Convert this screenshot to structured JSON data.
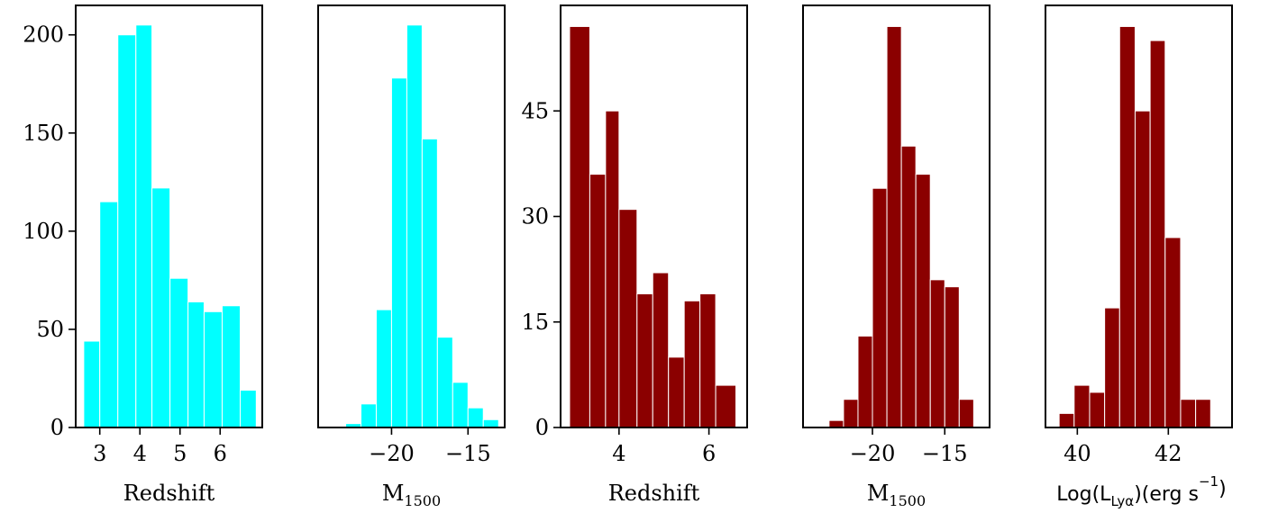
{
  "chart_data": [
    {
      "type": "bar",
      "xlabel": "Redshift",
      "bar_color": "#00ffff",
      "bins": [
        [
          2.6,
          3.0,
          44
        ],
        [
          3.0,
          3.45,
          115
        ],
        [
          3.45,
          3.9,
          200
        ],
        [
          3.9,
          4.3,
          205
        ],
        [
          4.3,
          4.75,
          122
        ],
        [
          4.75,
          5.2,
          76
        ],
        [
          5.2,
          5.6,
          64
        ],
        [
          5.6,
          6.05,
          59
        ],
        [
          6.05,
          6.5,
          62
        ],
        [
          6.5,
          6.9,
          19
        ]
      ],
      "xlim": [
        2.4,
        7.05
      ],
      "ylim": [
        0,
        215
      ],
      "xticks": [
        3,
        4,
        5,
        6
      ],
      "xtick_labels": [
        "3",
        "4",
        "5",
        "6"
      ],
      "yticks": [
        0,
        50,
        100,
        150,
        200
      ],
      "ytick_labels": [
        "0",
        "50",
        "100",
        "150",
        "200"
      ]
    },
    {
      "type": "bar",
      "xlabel_main": "M",
      "xlabel_sub": "1500",
      "bar_color": "#00ffff",
      "bins": [
        [
          -23.0,
          -22.0,
          2
        ],
        [
          -22.0,
          -21.0,
          12
        ],
        [
          -21.0,
          -20.0,
          60
        ],
        [
          -20.0,
          -19.0,
          178
        ],
        [
          -19.0,
          -18.0,
          205
        ],
        [
          -18.0,
          -17.0,
          147
        ],
        [
          -17.0,
          -16.0,
          46
        ],
        [
          -16.0,
          -15.0,
          23
        ],
        [
          -15.0,
          -14.0,
          10
        ],
        [
          -14.0,
          -13.0,
          4
        ]
      ],
      "xlim": [
        -24.8,
        -12.6
      ],
      "ylim": [
        0,
        215
      ],
      "xticks": [
        -20,
        -15
      ],
      "xtick_labels": [
        "−20",
        "−15"
      ],
      "yticks": [],
      "ytick_labels": []
    },
    {
      "type": "bar",
      "xlabel": "Redshift",
      "bar_color": "#8b0000",
      "bins": [
        [
          2.9,
          3.35,
          57
        ],
        [
          3.35,
          3.7,
          36
        ],
        [
          3.7,
          4.0,
          45
        ],
        [
          4.0,
          4.4,
          31
        ],
        [
          4.4,
          4.75,
          19
        ],
        [
          4.75,
          5.1,
          22
        ],
        [
          5.1,
          5.45,
          10
        ],
        [
          5.45,
          5.8,
          18
        ],
        [
          5.8,
          6.15,
          19
        ],
        [
          6.15,
          6.6,
          6
        ]
      ],
      "xlim": [
        2.7,
        6.85
      ],
      "ylim": [
        0,
        60
      ],
      "xticks": [
        4,
        6
      ],
      "xtick_labels": [
        "4",
        "6"
      ],
      "yticks": [
        0,
        15,
        30,
        45
      ],
      "ytick_labels": [
        "0",
        "15",
        "30",
        "45"
      ]
    },
    {
      "type": "bar",
      "xlabel_main": "M",
      "xlabel_sub": "1500",
      "bar_color": "#8b0000",
      "bins": [
        [
          -23.0,
          -22.0,
          1
        ],
        [
          -22.0,
          -21.0,
          4
        ],
        [
          -21.0,
          -20.0,
          13
        ],
        [
          -20.0,
          -19.0,
          34
        ],
        [
          -19.0,
          -18.0,
          57
        ],
        [
          -18.0,
          -17.0,
          40
        ],
        [
          -17.0,
          -16.0,
          36
        ],
        [
          -16.0,
          -15.0,
          21
        ],
        [
          -15.0,
          -14.0,
          20
        ],
        [
          -14.0,
          -13.0,
          4
        ]
      ],
      "xlim": [
        -24.8,
        -11.9
      ],
      "ylim": [
        0,
        60
      ],
      "xticks": [
        -20,
        -15
      ],
      "xtick_labels": [
        "−20",
        "−15"
      ],
      "yticks": [],
      "ytick_labels": []
    },
    {
      "type": "bar",
      "xlabel_main": "Log(L",
      "xlabel_sub": "Lyα",
      "xlabel_tail": ")(erg s",
      "xlabel_sup": "−1",
      "xlabel_end": ")",
      "bar_color": "#8b0000",
      "bins": [
        [
          39.6,
          39.93,
          2
        ],
        [
          39.93,
          40.27,
          6
        ],
        [
          40.27,
          40.6,
          5
        ],
        [
          40.6,
          40.93,
          17
        ],
        [
          40.93,
          41.27,
          57
        ],
        [
          41.27,
          41.6,
          45
        ],
        [
          41.6,
          41.93,
          55
        ],
        [
          41.93,
          42.27,
          27
        ],
        [
          42.27,
          42.6,
          4
        ],
        [
          42.6,
          42.93,
          4
        ]
      ],
      "xlim": [
        39.3,
        43.4
      ],
      "ylim": [
        0,
        60
      ],
      "xticks": [
        40,
        42
      ],
      "xtick_labels": [
        "40",
        "42"
      ],
      "yticks": [],
      "ytick_labels": []
    }
  ]
}
